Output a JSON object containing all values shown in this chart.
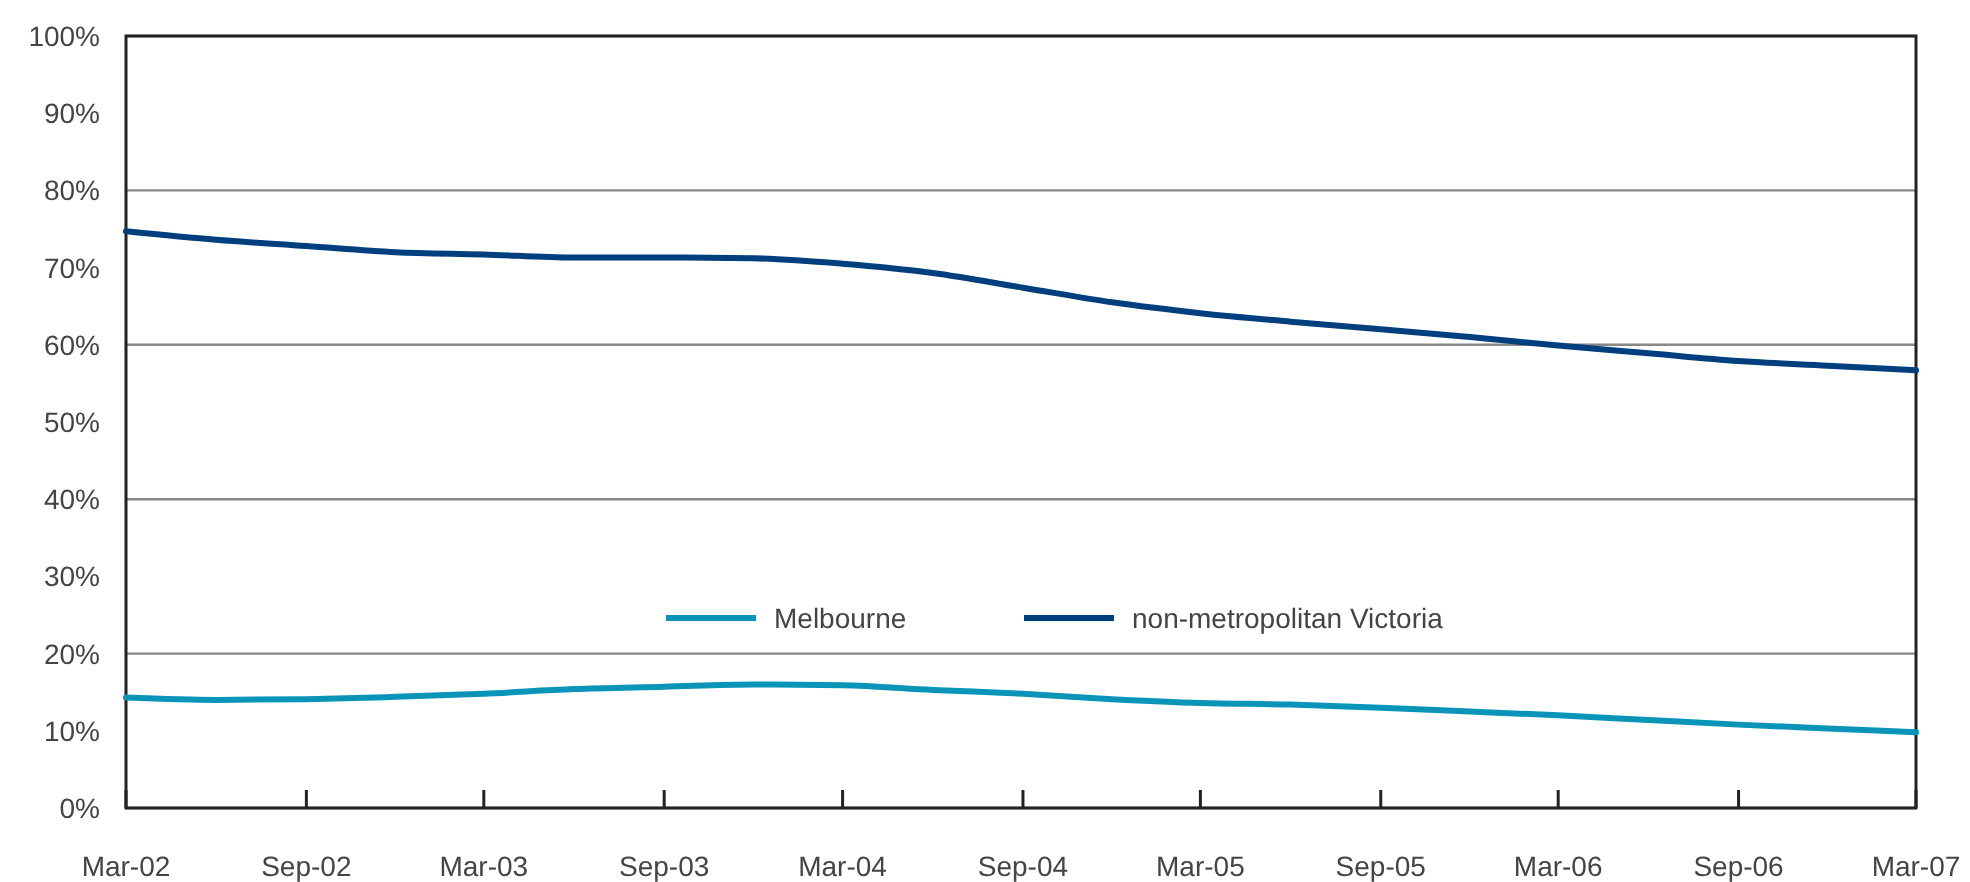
{
  "chart_data": {
    "type": "line",
    "x": [
      "2002-03",
      "2002-06",
      "2002-09",
      "2002-12",
      "2003-03",
      "2003-06",
      "2003-09",
      "2003-12",
      "2004-03",
      "2004-06",
      "2004-09",
      "2004-12",
      "2005-03",
      "2005-06",
      "2005-09",
      "2005-12",
      "2006-03",
      "2006-06",
      "2006-09",
      "2006-12",
      "2007-03"
    ],
    "series": [
      {
        "name": "Melbourne",
        "color": "#0a94b8",
        "values": [
          14.3,
          14.0,
          14.1,
          14.4,
          14.8,
          15.4,
          15.7,
          16.0,
          15.9,
          15.3,
          14.8,
          14.1,
          13.6,
          13.4,
          13.0,
          12.5,
          12.0,
          11.4,
          10.8,
          10.3,
          9.8
        ]
      },
      {
        "name": "non-metropolitan Victoria",
        "color": "#003f7d",
        "values": [
          74.7,
          73.6,
          72.8,
          72.0,
          71.7,
          71.3,
          71.3,
          71.2,
          70.5,
          69.3,
          67.4,
          65.5,
          64.1,
          63.0,
          62.0,
          61.0,
          59.9,
          58.9,
          57.9,
          57.3,
          56.7
        ]
      }
    ],
    "xlim": [
      "2002-03",
      "2007-03"
    ],
    "xticks": [
      {
        "value": "2002-03",
        "label": "Mar-02"
      },
      {
        "value": "2002-09",
        "label": "Sep-02"
      },
      {
        "value": "2003-03",
        "label": "Mar-03"
      },
      {
        "value": "2003-09",
        "label": "Sep-03"
      },
      {
        "value": "2004-03",
        "label": "Mar-04"
      },
      {
        "value": "2004-09",
        "label": "Sep-04"
      },
      {
        "value": "2005-03",
        "label": "Mar-05"
      },
      {
        "value": "2005-09",
        "label": "Sep-05"
      },
      {
        "value": "2006-03",
        "label": "Mar-06"
      },
      {
        "value": "2006-09",
        "label": "Sep-06"
      },
      {
        "value": "2007-03",
        "label": "Mar-07"
      }
    ],
    "ylim": [
      0,
      100
    ],
    "yticks": [
      {
        "value": 0,
        "label": "0%"
      },
      {
        "value": 10,
        "label": "10%"
      },
      {
        "value": 20,
        "label": "20%"
      },
      {
        "value": 30,
        "label": "30%"
      },
      {
        "value": 40,
        "label": "40%"
      },
      {
        "value": 50,
        "label": "50%"
      },
      {
        "value": 60,
        "label": "60%"
      },
      {
        "value": 70,
        "label": "70%"
      },
      {
        "value": 80,
        "label": "80%"
      },
      {
        "value": 90,
        "label": "90%"
      },
      {
        "value": 100,
        "label": "100%"
      }
    ],
    "grid": "y",
    "legend": "bottom",
    "marker": "none",
    "line_style": "solid"
  }
}
